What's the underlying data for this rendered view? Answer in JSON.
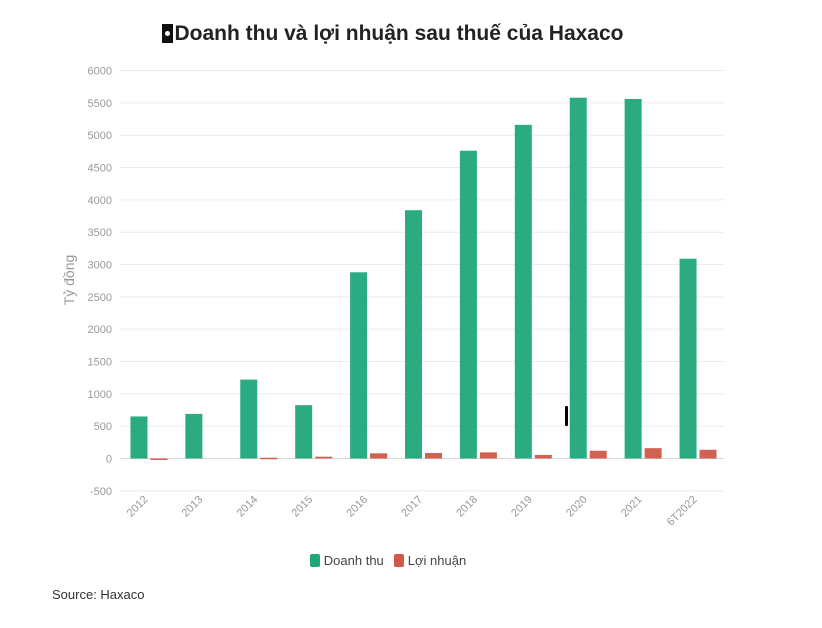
{
  "chart_data": {
    "type": "bar",
    "title": "Doanh thu và lợi nhuận sau thuế của Haxaco",
    "ylabel": "Tỷ đồng",
    "xlabel": "",
    "ylim": [
      -500,
      6000
    ],
    "yticks": [
      -500,
      0,
      500,
      1000,
      1500,
      2000,
      2500,
      3000,
      3500,
      4000,
      4500,
      5000,
      5500,
      6000
    ],
    "categories": [
      "2012",
      "2013",
      "2014",
      "2015",
      "2016",
      "2017",
      "2018",
      "2019",
      "2020",
      "2021",
      "6T2022"
    ],
    "series": [
      {
        "name": "Doanh thu",
        "color": "#1fa67a",
        "values": [
          650,
          690,
          1220,
          825,
          2880,
          3840,
          4760,
          5160,
          5580,
          5560,
          3090
        ]
      },
      {
        "name": "Lợi nhuận",
        "color": "#cf5a4a",
        "values": [
          -15,
          0,
          12,
          28,
          80,
          85,
          95,
          55,
          120,
          160,
          135
        ]
      }
    ],
    "grid": true,
    "legend": "bottom-center"
  },
  "source": "Source: Haxaco"
}
